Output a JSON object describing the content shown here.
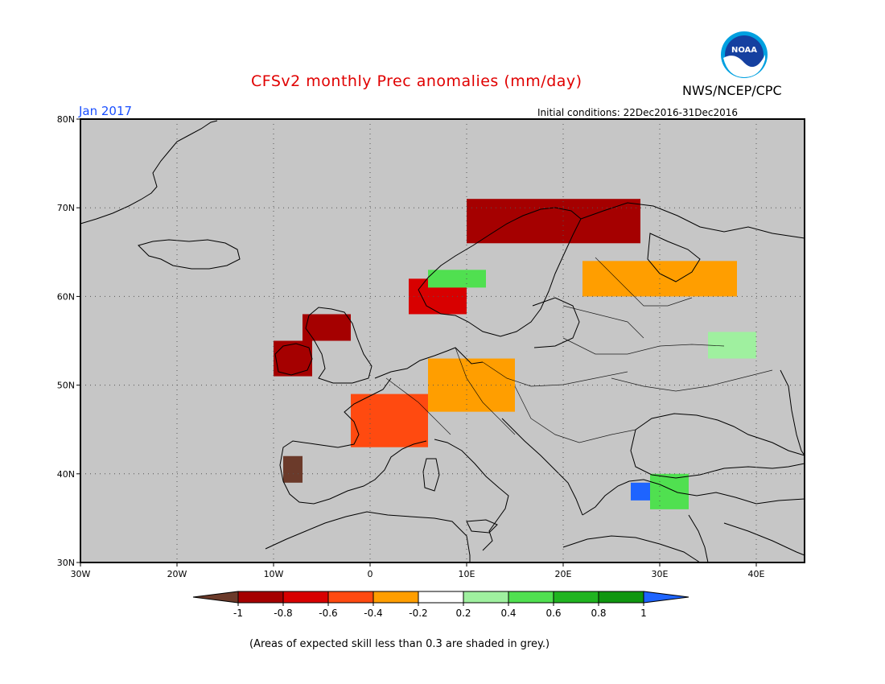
{
  "header": {
    "title": "CFSv2 monthly Prec anomalies (mm/day)",
    "agency": "NWS/NCEP/CPC",
    "logo_text": "NOAA",
    "month": "Jan 2017",
    "initial_conditions": "Initial conditions: 22Dec2016-31Dec2016"
  },
  "map": {
    "lon_range": [
      -30,
      45
    ],
    "lat_range": [
      30,
      80
    ],
    "lat_ticks": [
      "30N",
      "40N",
      "50N",
      "60N",
      "70N",
      "80N"
    ],
    "lon_ticks": [
      "30W",
      "20W",
      "10W",
      "0",
      "10E",
      "20E",
      "30E",
      "40E"
    ],
    "grid": true,
    "colors": {
      "ocean": "#c6c6c6",
      "land": "#c6c6c6",
      "coast": "#000000",
      "grid": "#555555"
    }
  },
  "colorbar": {
    "labels": [
      "-1",
      "-0.8",
      "-0.6",
      "-0.4",
      "-0.2",
      "0.2",
      "0.4",
      "0.6",
      "0.8",
      "1"
    ],
    "colors": [
      "#6b3a2a",
      "#a50000",
      "#d80000",
      "#ff4a10",
      "#ff9e00",
      "#ffffff",
      "#9ff09f",
      "#50e050",
      "#20b420",
      "#0f960f",
      "#1e64ff"
    ]
  },
  "anomaly_regions": [
    {
      "name": "northern-norway",
      "color": "#a50000",
      "lon": [
        10,
        28
      ],
      "lat": [
        66,
        71
      ]
    },
    {
      "name": "western-norway",
      "color": "#d80000",
      "lon": [
        4,
        10
      ],
      "lat": [
        58,
        62
      ]
    },
    {
      "name": "southern-norway-green",
      "color": "#50e050",
      "lon": [
        6,
        12
      ],
      "lat": [
        61,
        63
      ]
    },
    {
      "name": "scotland",
      "color": "#a50000",
      "lon": [
        -7,
        -2
      ],
      "lat": [
        55,
        58
      ]
    },
    {
      "name": "ireland",
      "color": "#a50000",
      "lon": [
        -10,
        -6
      ],
      "lat": [
        51,
        55
      ]
    },
    {
      "name": "france",
      "color": "#ff4a10",
      "lon": [
        -2,
        6
      ],
      "lat": [
        43,
        49
      ]
    },
    {
      "name": "central-europe",
      "color": "#ff9e00",
      "lon": [
        6,
        15
      ],
      "lat": [
        47,
        53
      ]
    },
    {
      "name": "portugal",
      "color": "#6b3a2a",
      "lon": [
        -9,
        -7
      ],
      "lat": [
        39,
        42
      ]
    },
    {
      "name": "finland-russia",
      "color": "#ff9e00",
      "lon": [
        22,
        38
      ],
      "lat": [
        60,
        64
      ]
    },
    {
      "name": "turkey-west",
      "color": "#1e64ff",
      "lon": [
        27,
        29
      ],
      "lat": [
        37,
        39
      ]
    },
    {
      "name": "turkey-green",
      "color": "#50e050",
      "lon": [
        29,
        33
      ],
      "lat": [
        36,
        40
      ]
    },
    {
      "name": "russia-green",
      "color": "#9ff09f",
      "lon": [
        35,
        40
      ],
      "lat": [
        53,
        56
      ]
    }
  ]
}
